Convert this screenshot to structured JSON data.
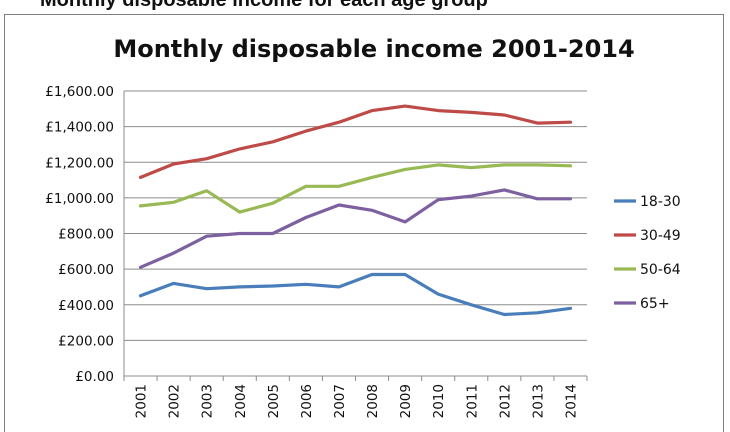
{
  "page": {
    "top_cut_text": "Monthly disposable income for each age group"
  },
  "chart_data": {
    "type": "line",
    "title": "Monthly disposable income 2001-2014",
    "xlabel": "",
    "ylabel": "",
    "categories": [
      "2001",
      "2002",
      "2003",
      "2004",
      "2005",
      "2006",
      "2007",
      "2008",
      "2009",
      "2010",
      "2011",
      "2012",
      "2013",
      "2014"
    ],
    "ylim": [
      0,
      1600
    ],
    "yticks": [
      0,
      200,
      400,
      600,
      800,
      1000,
      1200,
      1400,
      1600
    ],
    "ytick_labels": [
      "£0.00",
      "£200.00",
      "£400.00",
      "£600.00",
      "£800.00",
      "£1,000.00",
      "£1,200.00",
      "£1,400.00",
      "£1,600.00"
    ],
    "grid": true,
    "legend_position": "right",
    "series": [
      {
        "name": "18-30",
        "color": "#4a7ebb",
        "values": [
          450,
          520,
          490,
          500,
          505,
          515,
          500,
          570,
          570,
          460,
          400,
          345,
          355,
          380
        ]
      },
      {
        "name": "30-49",
        "color": "#be4b48",
        "values": [
          1115,
          1190,
          1220,
          1275,
          1315,
          1375,
          1425,
          1490,
          1515,
          1490,
          1480,
          1465,
          1420,
          1425
        ]
      },
      {
        "name": "50-64",
        "color": "#98b954",
        "values": [
          955,
          975,
          1040,
          920,
          970,
          1065,
          1065,
          1115,
          1160,
          1185,
          1170,
          1185,
          1185,
          1180
        ]
      },
      {
        "name": "65+",
        "color": "#7d60a0",
        "values": [
          610,
          690,
          785,
          800,
          800,
          890,
          960,
          930,
          865,
          990,
          1010,
          1045,
          995,
          995
        ]
      }
    ]
  }
}
